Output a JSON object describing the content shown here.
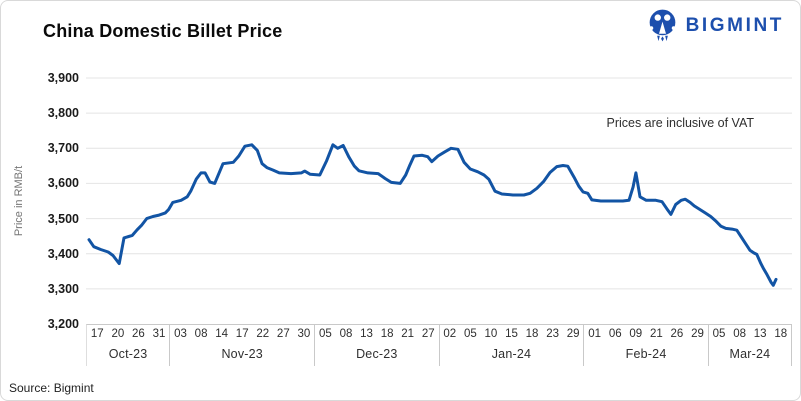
{
  "header": {
    "title": "China Domestic Billet Price",
    "brand_name": "BIGMINT"
  },
  "notes": {
    "vat": "Prices are inclusive of VAT",
    "source": "Source: Bigmint"
  },
  "colors": {
    "line": "#1254a4",
    "brand_blue": "#1d4fad",
    "grid": "#e4e4e4",
    "axis_line": "#c9c9c9"
  },
  "chart_data": {
    "type": "line",
    "title": "China Domestic Billet Price",
    "ylabel": "Price in RMB/t",
    "ylim": [
      3200,
      3900
    ],
    "y_ticks": [
      3900,
      3800,
      3700,
      3600,
      3500,
      3400,
      3300,
      3200
    ],
    "grid": "horizontal",
    "legend": "none",
    "annotation": "Prices are inclusive of VAT",
    "x_axis": {
      "groups": [
        {
          "month": "Oct-23",
          "days": [
            "17",
            "20",
            "26",
            "31"
          ]
        },
        {
          "month": "Nov-23",
          "days": [
            "03",
            "08",
            "14",
            "17",
            "22",
            "27",
            "30"
          ]
        },
        {
          "month": "Dec-23",
          "days": [
            "05",
            "08",
            "13",
            "18",
            "21",
            "27"
          ]
        },
        {
          "month": "Jan-24",
          "days": [
            "02",
            "05",
            "10",
            "15",
            "18",
            "23",
            "29"
          ]
        },
        {
          "month": "Feb-24",
          "days": [
            "01",
            "06",
            "09",
            "21",
            "26",
            "29"
          ]
        },
        {
          "month": "Mar-24",
          "days": [
            "05",
            "08",
            "13",
            "18"
          ]
        }
      ]
    },
    "series": [
      {
        "name": "China Domestic Billet Price",
        "color": "#1254a4",
        "points": [
          [
            0,
            3440
          ],
          [
            0.007,
            3420
          ],
          [
            0.017,
            3412
          ],
          [
            0.028,
            3405
          ],
          [
            0.035,
            3395
          ],
          [
            0.044,
            3372
          ],
          [
            0.051,
            3445
          ],
          [
            0.063,
            3452
          ],
          [
            0.07,
            3468
          ],
          [
            0.077,
            3482
          ],
          [
            0.084,
            3500
          ],
          [
            0.093,
            3506
          ],
          [
            0.102,
            3510
          ],
          [
            0.111,
            3516
          ],
          [
            0.116,
            3526
          ],
          [
            0.122,
            3546
          ],
          [
            0.134,
            3552
          ],
          [
            0.143,
            3562
          ],
          [
            0.148,
            3578
          ],
          [
            0.156,
            3612
          ],
          [
            0.163,
            3630
          ],
          [
            0.169,
            3630
          ],
          [
            0.176,
            3604
          ],
          [
            0.183,
            3600
          ],
          [
            0.195,
            3656
          ],
          [
            0.21,
            3660
          ],
          [
            0.218,
            3678
          ],
          [
            0.227,
            3706
          ],
          [
            0.237,
            3710
          ],
          [
            0.245,
            3694
          ],
          [
            0.252,
            3656
          ],
          [
            0.259,
            3645
          ],
          [
            0.268,
            3638
          ],
          [
            0.277,
            3630
          ],
          [
            0.294,
            3628
          ],
          [
            0.309,
            3630
          ],
          [
            0.314,
            3635
          ],
          [
            0.322,
            3626
          ],
          [
            0.336,
            3624
          ],
          [
            0.346,
            3665
          ],
          [
            0.355,
            3710
          ],
          [
            0.362,
            3700
          ],
          [
            0.37,
            3708
          ],
          [
            0.378,
            3676
          ],
          [
            0.386,
            3650
          ],
          [
            0.393,
            3636
          ],
          [
            0.406,
            3630
          ],
          [
            0.421,
            3628
          ],
          [
            0.431,
            3614
          ],
          [
            0.44,
            3603
          ],
          [
            0.453,
            3600
          ],
          [
            0.461,
            3624
          ],
          [
            0.467,
            3652
          ],
          [
            0.473,
            3678
          ],
          [
            0.485,
            3680
          ],
          [
            0.493,
            3676
          ],
          [
            0.499,
            3662
          ],
          [
            0.508,
            3678
          ],
          [
            0.518,
            3690
          ],
          [
            0.527,
            3700
          ],
          [
            0.537,
            3697
          ],
          [
            0.546,
            3660
          ],
          [
            0.555,
            3641
          ],
          [
            0.566,
            3633
          ],
          [
            0.575,
            3624
          ],
          [
            0.582,
            3612
          ],
          [
            0.591,
            3578
          ],
          [
            0.601,
            3570
          ],
          [
            0.617,
            3567
          ],
          [
            0.633,
            3567
          ],
          [
            0.642,
            3572
          ],
          [
            0.652,
            3586
          ],
          [
            0.662,
            3606
          ],
          [
            0.671,
            3631
          ],
          [
            0.681,
            3648
          ],
          [
            0.69,
            3651
          ],
          [
            0.697,
            3649
          ],
          [
            0.706,
            3618
          ],
          [
            0.713,
            3592
          ],
          [
            0.719,
            3576
          ],
          [
            0.726,
            3572
          ],
          [
            0.732,
            3553
          ],
          [
            0.745,
            3550
          ],
          [
            0.763,
            3550
          ],
          [
            0.777,
            3550
          ],
          [
            0.786,
            3552
          ],
          [
            0.792,
            3590
          ],
          [
            0.796,
            3630
          ],
          [
            0.802,
            3562
          ],
          [
            0.811,
            3552
          ],
          [
            0.825,
            3552
          ],
          [
            0.834,
            3548
          ],
          [
            0.841,
            3528
          ],
          [
            0.847,
            3512
          ],
          [
            0.854,
            3540
          ],
          [
            0.862,
            3552
          ],
          [
            0.868,
            3555
          ],
          [
            0.875,
            3546
          ],
          [
            0.881,
            3536
          ],
          [
            0.889,
            3526
          ],
          [
            0.897,
            3516
          ],
          [
            0.905,
            3506
          ],
          [
            0.913,
            3492
          ],
          [
            0.92,
            3478
          ],
          [
            0.927,
            3472
          ],
          [
            0.936,
            3470
          ],
          [
            0.943,
            3467
          ],
          [
            0.95,
            3446
          ],
          [
            0.956,
            3428
          ],
          [
            0.962,
            3410
          ],
          [
            0.968,
            3402
          ],
          [
            0.972,
            3398
          ],
          [
            0.978,
            3372
          ],
          [
            0.982,
            3357
          ],
          [
            0.987,
            3340
          ],
          [
            0.993,
            3318
          ],
          [
            0.996,
            3310
          ],
          [
            1,
            3327
          ]
        ]
      }
    ]
  }
}
